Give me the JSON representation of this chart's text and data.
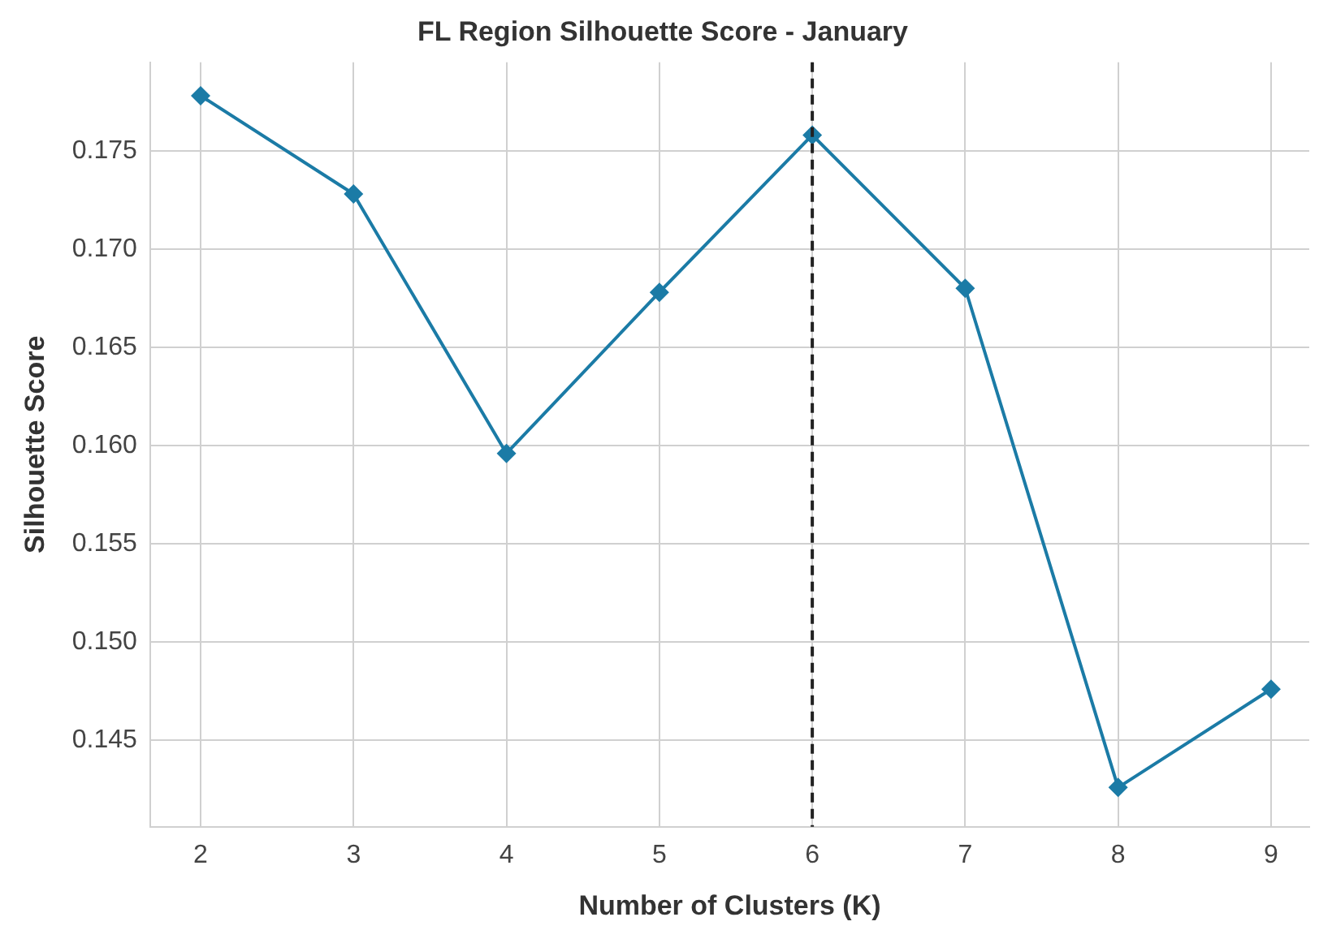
{
  "chart_data": {
    "type": "line",
    "title": "FL Region Silhouette Score - January",
    "xlabel": "Number of Clusters (K)",
    "ylabel": "Silhouette Score",
    "x": [
      2,
      3,
      4,
      5,
      6,
      7,
      8,
      9
    ],
    "series": [
      {
        "color": "#1b7ba6",
        "values": [
          0.1778,
          0.1728,
          0.1596,
          0.1678,
          0.1758,
          0.168,
          0.1426,
          0.1476
        ]
      }
    ],
    "xlim": [
      1.67,
      9.25
    ],
    "xticks": [
      2,
      3,
      4,
      5,
      6,
      7,
      8,
      9
    ],
    "ylim": [
      0.1406,
      0.1795
    ],
    "yticks": [
      0.145,
      {
        "value": 0.15,
        "label": "0.150"
      },
      0.155,
      {
        "value": 0.16,
        "label": "0.160"
      },
      0.165,
      {
        "value": 0.17,
        "label": "0.170"
      },
      0.175
    ],
    "ref_lines": [
      {
        "axis": "x",
        "value": 6,
        "color": "#222222",
        "line_style": "dashed"
      }
    ],
    "grid": true,
    "marker": "diamond",
    "line_style": "solid",
    "legend": false
  }
}
